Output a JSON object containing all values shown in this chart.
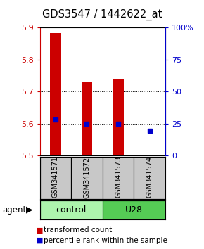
{
  "title": "GDS3547 / 1442622_at",
  "samples": [
    "GSM341571",
    "GSM341572",
    "GSM341573",
    "GSM341574"
  ],
  "bar_bottoms": [
    5.5,
    5.5,
    5.5,
    5.5
  ],
  "bar_tops": [
    5.882,
    5.728,
    5.737,
    5.503
  ],
  "percentile_values": [
    5.612,
    5.6,
    5.6,
    5.578
  ],
  "ylim": [
    5.5,
    5.9
  ],
  "yticks_left": [
    5.5,
    5.6,
    5.7,
    5.8,
    5.9
  ],
  "yticks_right": [
    0,
    25,
    50,
    75,
    100
  ],
  "bar_color": "#cc0000",
  "dot_color": "#0000cc",
  "control_color": "#adf5ad",
  "u28_color": "#55cc55",
  "sample_box_color": "#c8c8c8",
  "legend_bar_label": "transformed count",
  "legend_dot_label": "percentile rank within the sample",
  "grid_lines": [
    5.6,
    5.7,
    5.8
  ],
  "bar_width": 0.35
}
